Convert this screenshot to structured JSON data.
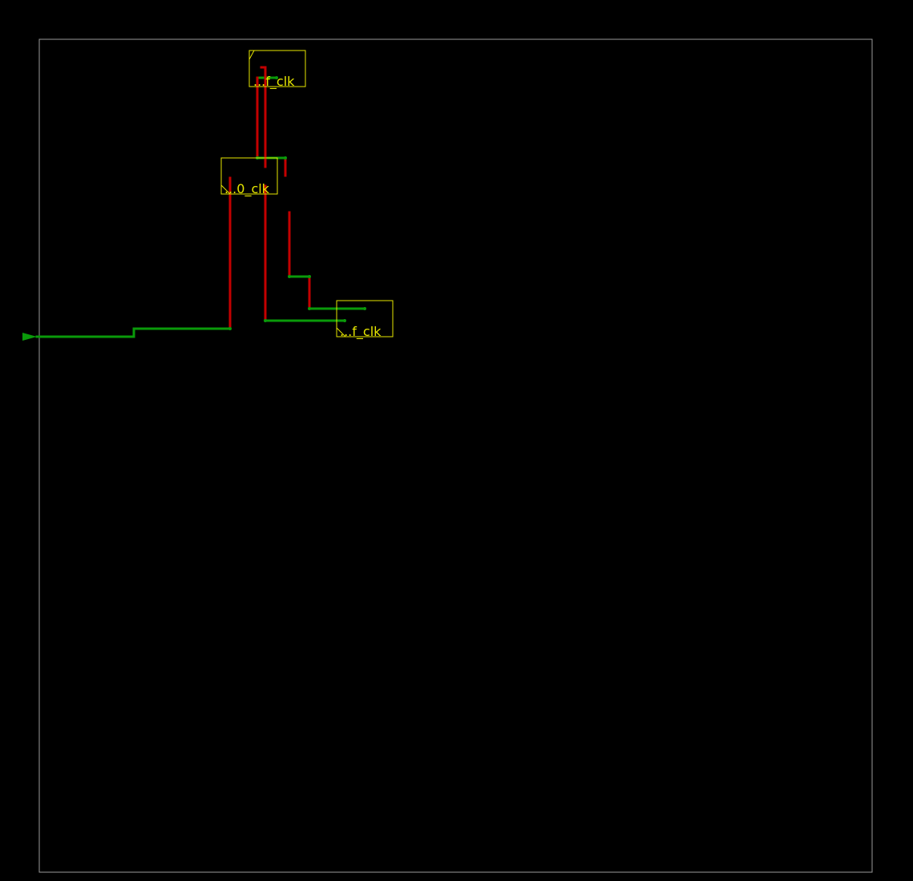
{
  "colors": {
    "background": "#000000",
    "die_outline": "#9a9a9a",
    "instance_outline": "#e6e600",
    "instance_label": "#e6e600",
    "wire_horizontal": "#0a9a0a",
    "wire_vertical": "#c40000",
    "pin": "#0a9a0a"
  },
  "instances": [
    {
      "label": "...f_clk"
    },
    {
      "label": "...0_clk"
    },
    {
      "label": "...f_clk"
    }
  ],
  "input_pin": {
    "icon": "triangle-pin-icon"
  }
}
